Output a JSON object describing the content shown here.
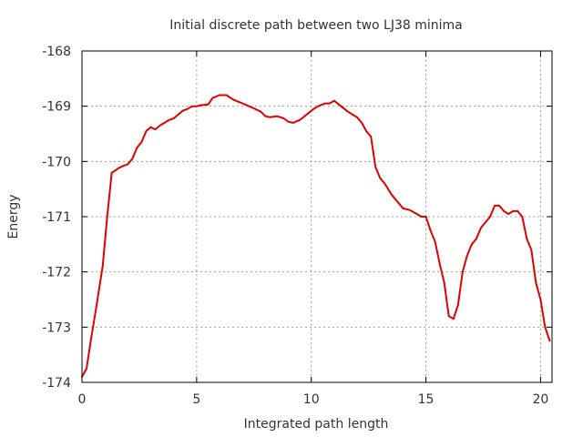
{
  "chart_data": {
    "type": "line",
    "title": "Initial discrete path between two LJ38 minima",
    "xlabel": "Integrated path length",
    "ylabel": "Energy",
    "xlim": [
      0,
      20.5
    ],
    "ylim": [
      -174,
      -168
    ],
    "xticks": [
      "0",
      "5",
      "10",
      "15",
      "20"
    ],
    "yticks": [
      "-168",
      "-169",
      "-170",
      "-171",
      "-172",
      "-173",
      "-174"
    ],
    "grid": true,
    "legend": "none",
    "colors": {
      "line": "#e00000",
      "grid": "#a0a0a0",
      "axes": "#000000"
    },
    "series": [
      {
        "x": [
          0,
          0.2,
          0.4,
          0.6,
          0.9,
          1.1,
          1.2,
          1.3,
          1.4,
          1.6,
          1.8,
          2.0,
          2.2,
          2.4,
          2.5,
          2.6,
          2.8,
          3.0,
          3.2,
          3.4,
          3.6,
          3.8,
          4.0,
          4.2,
          4.4,
          4.6,
          4.8,
          5.0,
          5.2,
          5.5,
          5.7,
          6.0,
          6.3,
          6.6,
          7.0,
          7.4,
          7.8,
          8.0,
          8.2,
          8.5,
          8.8,
          9.0,
          9.2,
          9.5,
          9.8,
          10.1,
          10.3,
          10.6,
          10.8,
          11.0,
          11.3,
          11.6,
          11.8,
          12.0,
          12.2,
          12.4,
          12.6,
          12.8,
          13.0,
          13.2,
          13.5,
          13.8,
          14.0,
          14.3,
          14.6,
          14.8,
          15.0,
          15.2,
          15.4,
          15.6,
          15.8,
          16.0,
          16.2,
          16.4,
          16.6,
          16.8,
          17.0,
          17.2,
          17.4,
          17.6,
          17.8,
          18.0,
          18.2,
          18.4,
          18.6,
          18.8,
          19.0,
          19.2,
          19.4,
          19.6,
          19.8,
          20.0,
          20.2,
          20.4
        ],
        "y": [
          -173.9,
          -173.75,
          -173.2,
          -172.7,
          -171.9,
          -171.0,
          -170.6,
          -170.2,
          -170.18,
          -170.12,
          -170.08,
          -170.05,
          -169.95,
          -169.75,
          -169.7,
          -169.65,
          -169.45,
          -169.38,
          -169.42,
          -169.35,
          -169.3,
          -169.25,
          -169.22,
          -169.15,
          -169.08,
          -169.05,
          -169.0,
          -169.0,
          -168.98,
          -168.97,
          -168.85,
          -168.8,
          -168.8,
          -168.88,
          -168.95,
          -169.02,
          -169.1,
          -169.18,
          -169.2,
          -169.18,
          -169.22,
          -169.28,
          -169.3,
          -169.25,
          -169.15,
          -169.05,
          -169.0,
          -168.95,
          -168.95,
          -168.9,
          -169.0,
          -169.1,
          -169.15,
          -169.2,
          -169.3,
          -169.45,
          -169.55,
          -170.1,
          -170.3,
          -170.4,
          -170.6,
          -170.75,
          -170.85,
          -170.88,
          -170.95,
          -171.0,
          -171.0,
          -171.25,
          -171.45,
          -171.85,
          -172.2,
          -172.8,
          -172.85,
          -172.6,
          -172.0,
          -171.7,
          -171.5,
          -171.4,
          -171.2,
          -171.1,
          -171.0,
          -170.8,
          -170.8,
          -170.9,
          -170.95,
          -170.9,
          -170.9,
          -171.0,
          -171.4,
          -171.6,
          -172.2,
          -172.5,
          -173.0,
          -173.25
        ]
      }
    ]
  }
}
